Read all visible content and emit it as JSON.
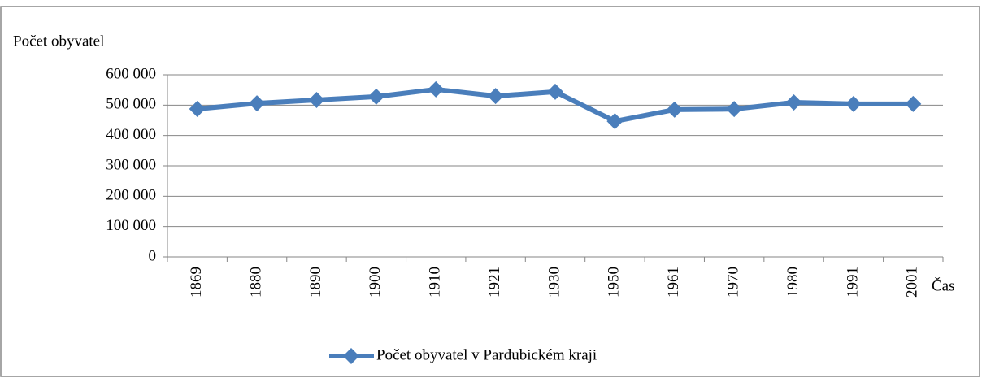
{
  "chart_data": {
    "type": "line",
    "y_label": "Počet obyvatel",
    "x_label": "Čas",
    "categories": [
      "1869",
      "1880",
      "1890",
      "1900",
      "1910",
      "1921",
      "1930",
      "1950",
      "1961",
      "1970",
      "1980",
      "1991",
      "2001"
    ],
    "series": [
      {
        "name": "Počet obyvatel  v Pardubickém kraji",
        "color": "#4a7ebb",
        "values": [
          487500,
          506000,
          517000,
          528000,
          552000,
          530000,
          544000,
          447000,
          485000,
          487000,
          509000,
          504000,
          504000
        ]
      }
    ],
    "ylim": [
      0,
      600000
    ],
    "yticks": [
      0,
      {
        "value": 100000,
        "label": "100 000"
      },
      {
        "value": 200000,
        "label": "200 000"
      },
      {
        "value": 300000,
        "label": "300 000"
      },
      {
        "value": 400000,
        "label": "400 000"
      },
      {
        "value": 500000,
        "label": "500 000"
      },
      {
        "value": 600000,
        "label": "600 000"
      }
    ],
    "grid": true,
    "legend": "bottom"
  }
}
